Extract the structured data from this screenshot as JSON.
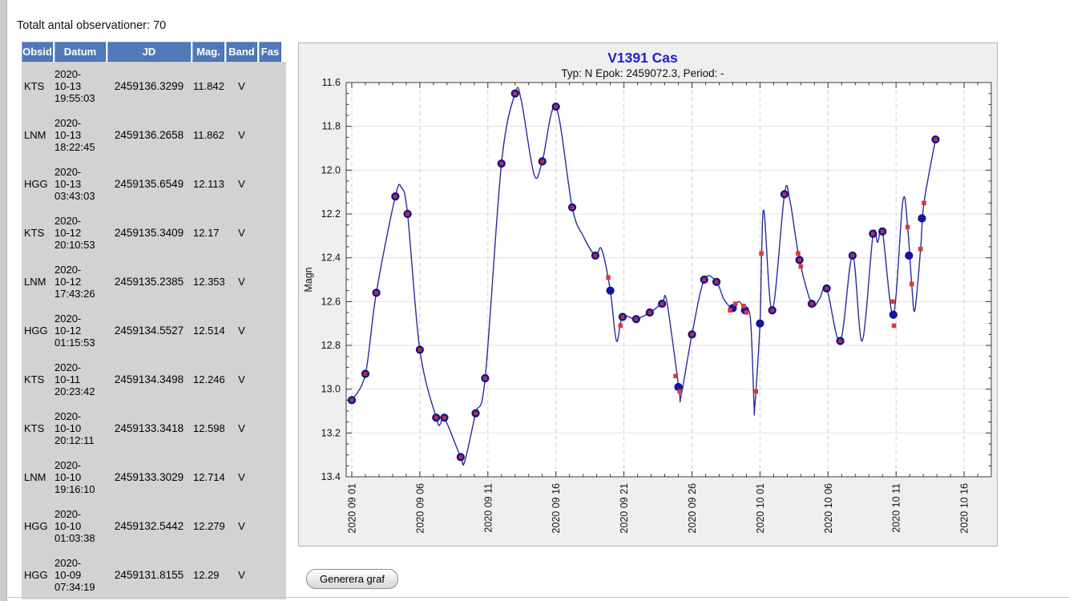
{
  "page": {
    "total_observations_label": "Totalt antal observationer: 70"
  },
  "generate_button_label": "Generera graf",
  "observation_table": {
    "headers": [
      "Obsid",
      "Datum",
      "JD",
      "Mag.",
      "Band",
      "Fas"
    ],
    "rows": [
      {
        "obsid": "KTS",
        "datum_lines": [
          "2020-",
          "10-13",
          "19:55:03"
        ],
        "jd": "2459136.3299",
        "mag": "11.842",
        "band": "V",
        "fas": ""
      },
      {
        "obsid": "LNM",
        "datum_lines": [
          "2020-",
          "10-13",
          "18:22:45"
        ],
        "jd": "2459136.2658",
        "mag": "11.862",
        "band": "V",
        "fas": ""
      },
      {
        "obsid": "HGG",
        "datum_lines": [
          "2020-",
          "10-13",
          "03:43:03"
        ],
        "jd": "2459135.6549",
        "mag": "12.113",
        "band": "V",
        "fas": ""
      },
      {
        "obsid": "KTS",
        "datum_lines": [
          "2020-",
          "10-12",
          "20:10:53"
        ],
        "jd": "2459135.3409",
        "mag": "12.17",
        "band": "V",
        "fas": ""
      },
      {
        "obsid": "LNM",
        "datum_lines": [
          "2020-",
          "10-12",
          "17:43:26"
        ],
        "jd": "2459135.2385",
        "mag": "12.353",
        "band": "V",
        "fas": ""
      },
      {
        "obsid": "HGG",
        "datum_lines": [
          "2020-",
          "10-12",
          "01:15:53"
        ],
        "jd": "2459134.5527",
        "mag": "12.514",
        "band": "V",
        "fas": ""
      },
      {
        "obsid": "KTS",
        "datum_lines": [
          "2020-",
          "10-11",
          "20:23:42"
        ],
        "jd": "2459134.3498",
        "mag": "12.246",
        "band": "V",
        "fas": ""
      },
      {
        "obsid": "KTS",
        "datum_lines": [
          "2020-",
          "10-10",
          "20:12:11"
        ],
        "jd": "2459133.3418",
        "mag": "12.598",
        "band": "V",
        "fas": ""
      },
      {
        "obsid": "LNM",
        "datum_lines": [
          "2020-",
          "10-10",
          "19:16:10"
        ],
        "jd": "2459133.3029",
        "mag": "12.714",
        "band": "V",
        "fas": ""
      },
      {
        "obsid": "HGG",
        "datum_lines": [
          "2020-",
          "10-10",
          "01:03:38"
        ],
        "jd": "2459132.5442",
        "mag": "12.279",
        "band": "V",
        "fas": ""
      },
      {
        "obsid": "HGG",
        "datum_lines": [
          "2020-",
          "10-09",
          "07:34:19"
        ],
        "jd": "2459131.8155",
        "mag": "12.29",
        "band": "V",
        "fas": ""
      }
    ]
  },
  "chart_data": {
    "type": "line",
    "title": "V1391 Cas",
    "subtitle": "Typ: N Epok: 2459072.3, Period: -",
    "ylabel": "Magn",
    "xlabel": "",
    "y_axis_inverted_magnitude": true,
    "ylim": [
      11.6,
      13.4
    ],
    "y_ticks": [
      11.6,
      11.8,
      12.0,
      12.2,
      12.4,
      12.6,
      12.8,
      13.0,
      13.2,
      13.4
    ],
    "y_minor_tick_interval": 0.05,
    "x_tick_labels": [
      "2020 09 01",
      "2020 09 06",
      "2020 09 11",
      "2020 09 16",
      "2020 09 21",
      "2020 09 26",
      "2020 10 01",
      "2020 10 06",
      "2020 10 11",
      "2020 10 16"
    ],
    "x_major_tick_days": [
      0,
      5,
      10,
      15,
      20,
      25,
      30,
      35,
      40,
      45
    ],
    "x_minor_tick_interval_days": 1,
    "x_range_days": [
      -0.41,
      47.0
    ],
    "grid": true,
    "legend": "none",
    "colors": {
      "title": "#2121c8",
      "line": "#2c2c9c",
      "mean_point": "#1414aa",
      "obs_point_on_mean": "#b53232",
      "obs_point_alone": "#da3a3a",
      "panel_bg": "#efefef",
      "plot_bg": "#ffffff"
    },
    "series": [
      {
        "name": "daily-mean",
        "marker": "blue-circle",
        "points_day_mag": [
          [
            0,
            13.05
          ],
          [
            1,
            12.93
          ],
          [
            1.8,
            12.56
          ],
          [
            3.2,
            12.12
          ],
          [
            4.1,
            12.2
          ],
          [
            5,
            12.82
          ],
          [
            6.2,
            13.13
          ],
          [
            6.8,
            13.13
          ],
          [
            8,
            13.31
          ],
          [
            9.1,
            13.11
          ],
          [
            9.8,
            12.95
          ],
          [
            11,
            11.97
          ],
          [
            12,
            11.65
          ],
          [
            14,
            11.96
          ],
          [
            15,
            11.71
          ],
          [
            16.2,
            12.17
          ],
          [
            17.9,
            12.39
          ],
          [
            19,
            12.55
          ],
          [
            19.9,
            12.67
          ],
          [
            20.9,
            12.68
          ],
          [
            21.9,
            12.65
          ],
          [
            22.8,
            12.61
          ],
          [
            24,
            12.99
          ],
          [
            25,
            12.75
          ],
          [
            25.9,
            12.5
          ],
          [
            26.8,
            12.51
          ],
          [
            28,
            12.63
          ],
          [
            28.9,
            12.64
          ],
          [
            30,
            12.7
          ],
          [
            30.9,
            12.64
          ],
          [
            31.8,
            12.11
          ],
          [
            32.9,
            12.41
          ],
          [
            33.8,
            12.61
          ],
          [
            34.9,
            12.54
          ],
          [
            35.9,
            12.78
          ],
          [
            36.8,
            12.39
          ],
          [
            38.3,
            12.29
          ],
          [
            39,
            12.28
          ],
          [
            39.8,
            12.66
          ],
          [
            40.95,
            12.39
          ],
          [
            41.9,
            12.22
          ],
          [
            42.9,
            11.86
          ]
        ]
      },
      {
        "name": "observation",
        "marker": "red-square",
        "points_day_mag": [
          [
            0,
            13.05
          ],
          [
            1,
            12.93
          ],
          [
            1.8,
            12.56
          ],
          [
            3.2,
            12.12
          ],
          [
            4.1,
            12.2
          ],
          [
            5,
            12.82
          ],
          [
            6.2,
            13.13
          ],
          [
            6.8,
            13.13
          ],
          [
            8,
            13.31
          ],
          [
            9.1,
            13.11
          ],
          [
            9.8,
            12.95
          ],
          [
            11,
            11.97
          ],
          [
            12,
            11.65
          ],
          [
            14,
            11.96
          ],
          [
            15,
            11.71
          ],
          [
            16.2,
            12.17
          ],
          [
            17.9,
            12.39
          ],
          [
            18.85,
            12.49
          ],
          [
            19.75,
            12.71
          ],
          [
            19.9,
            12.67
          ],
          [
            20.9,
            12.68
          ],
          [
            21.9,
            12.65
          ],
          [
            22.8,
            12.61
          ],
          [
            23.8,
            12.94
          ],
          [
            24.1,
            13.01
          ],
          [
            25,
            12.75
          ],
          [
            25.9,
            12.5
          ],
          [
            26.8,
            12.51
          ],
          [
            27.8,
            12.64
          ],
          [
            28.2,
            12.61
          ],
          [
            28.8,
            12.62
          ],
          [
            29,
            12.65
          ],
          [
            29.7,
            13.01
          ],
          [
            30.1,
            12.38
          ],
          [
            30.9,
            12.64
          ],
          [
            31.8,
            12.11
          ],
          [
            32.8,
            12.38
          ],
          [
            32.9,
            12.41
          ],
          [
            33,
            12.44
          ],
          [
            33.8,
            12.61
          ],
          [
            34.9,
            12.54
          ],
          [
            35.9,
            12.78
          ],
          [
            36.8,
            12.39
          ],
          [
            38.3,
            12.29
          ],
          [
            39,
            12.28
          ],
          [
            39.75,
            12.6
          ],
          [
            39.85,
            12.71
          ],
          [
            40.85,
            12.26
          ],
          [
            41.15,
            12.52
          ],
          [
            41.8,
            12.36
          ],
          [
            42.05,
            12.15
          ],
          [
            42.9,
            11.86
          ]
        ]
      }
    ],
    "smooth_curve_day_mag": [
      [
        0,
        13.05
      ],
      [
        1,
        12.93
      ],
      [
        1.8,
        12.56
      ],
      [
        3.2,
        12.12
      ],
      [
        3.65,
        12.08
      ],
      [
        4.1,
        12.2
      ],
      [
        5,
        12.82
      ],
      [
        6.2,
        13.13
      ],
      [
        6.5,
        13.16
      ],
      [
        6.8,
        13.13
      ],
      [
        8,
        13.31
      ],
      [
        8.3,
        13.33
      ],
      [
        9.1,
        13.11
      ],
      [
        9.8,
        12.95
      ],
      [
        11,
        11.97
      ],
      [
        12,
        11.65
      ],
      [
        12.45,
        11.68
      ],
      [
        13.4,
        12.02
      ],
      [
        14,
        11.96
      ],
      [
        15,
        11.71
      ],
      [
        16.2,
        12.17
      ],
      [
        17,
        12.3
      ],
      [
        17.9,
        12.39
      ],
      [
        18.35,
        12.36
      ],
      [
        19,
        12.55
      ],
      [
        19.45,
        12.78
      ],
      [
        19.9,
        12.67
      ],
      [
        20.9,
        12.68
      ],
      [
        21.9,
        12.65
      ],
      [
        22.8,
        12.61
      ],
      [
        23.15,
        12.6
      ],
      [
        24.05,
        13.0
      ],
      [
        24.2,
        13.03
      ],
      [
        25,
        12.75
      ],
      [
        25.9,
        12.5
      ],
      [
        26.8,
        12.51
      ],
      [
        27.35,
        12.59
      ],
      [
        28,
        12.63
      ],
      [
        28.45,
        12.6
      ],
      [
        28.9,
        12.64
      ],
      [
        29.3,
        12.68
      ],
      [
        29.55,
        13.06
      ],
      [
        29.62,
        13.08
      ],
      [
        30,
        12.7
      ],
      [
        30.12,
        12.38
      ],
      [
        30.3,
        12.19
      ],
      [
        30.9,
        12.64
      ],
      [
        31.8,
        12.11
      ],
      [
        32.2,
        12.14
      ],
      [
        32.9,
        12.41
      ],
      [
        33.8,
        12.61
      ],
      [
        34.35,
        12.59
      ],
      [
        34.9,
        12.54
      ],
      [
        35.9,
        12.78
      ],
      [
        36.8,
        12.39
      ],
      [
        37.5,
        12.78
      ],
      [
        38.3,
        12.3
      ],
      [
        38.65,
        12.33
      ],
      [
        39,
        12.28
      ],
      [
        39.8,
        12.66
      ],
      [
        40.5,
        12.14
      ],
      [
        40.85,
        12.26
      ],
      [
        41.15,
        12.52
      ],
      [
        41.38,
        12.64
      ],
      [
        41.8,
        12.36
      ],
      [
        42.05,
        12.15
      ],
      [
        42.9,
        11.86
      ]
    ]
  }
}
